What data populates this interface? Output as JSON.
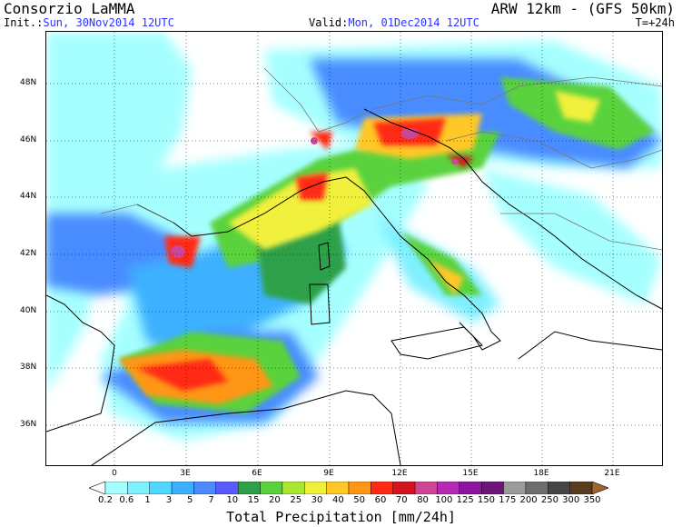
{
  "header": {
    "organization": "Consorzio LaMMA",
    "model": "ARW 12km - (GFS 50km)",
    "init_label": "Init.:",
    "init_value": "Sun, 30Nov2014 12UTC",
    "valid_label": "Valid:",
    "valid_value": "Mon, 01Dec2014 12UTC",
    "timestep": "T=+24h"
  },
  "map": {
    "lat_labels": [
      "48N",
      "46N",
      "44N",
      "42N",
      "40N",
      "38N",
      "36N"
    ],
    "lon_labels": [
      "0",
      "3E",
      "6E",
      "9E",
      "12E",
      "15E",
      "18E",
      "21E"
    ],
    "lat_range": [
      34.7,
      49.6
    ],
    "lon_range": [
      -2.9,
      22.6
    ]
  },
  "colorbar": {
    "title": "Total Precipitation [mm/24h]",
    "labels": [
      "0.2",
      "0.6",
      "1",
      "3",
      "5",
      "7",
      "10",
      "15",
      "20",
      "25",
      "30",
      "40",
      "50",
      "60",
      "70",
      "80",
      "100",
      "125",
      "150",
      "175",
      "200",
      "250",
      "300",
      "350"
    ],
    "colors": [
      "#a6ffff",
      "#7ff0ff",
      "#50d7ff",
      "#3cb0ff",
      "#4a8cff",
      "#5a5aff",
      "#2fa04a",
      "#5ad23c",
      "#a8e632",
      "#f0f03c",
      "#ffc828",
      "#ff9614",
      "#ff2a14",
      "#d2141e",
      "#cd4696",
      "#b42ab4",
      "#8c14a0",
      "#6e1478",
      "#9b9b9b",
      "#6e6e6e",
      "#464646",
      "#5a3c1e",
      "#825028",
      "#a0642d"
    ]
  }
}
